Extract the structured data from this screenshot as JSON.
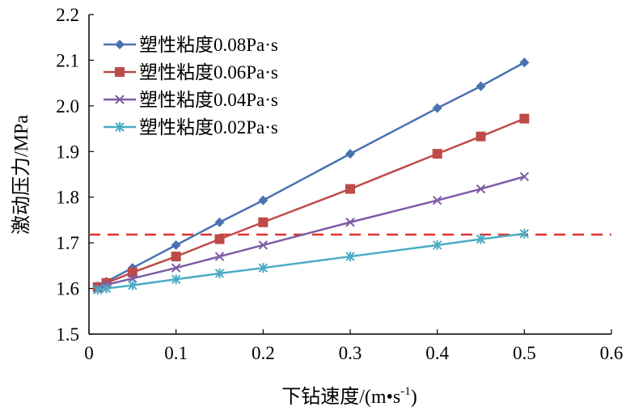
{
  "chart_data": {
    "type": "line",
    "xlabel": "下钻速度/(m•s",
    "xlabel_sup": "-1",
    "xlabel_close": ")",
    "ylabel": "激动压力/MPa",
    "xlim": [
      0,
      0.6
    ],
    "ylim": [
      1.5,
      2.2
    ],
    "x_ticks": [
      "0",
      "0.1",
      "0.2",
      "0.3",
      "0.4",
      "0.5",
      "0.6"
    ],
    "y_ticks": [
      "1.5",
      "1.6",
      "1.7",
      "1.8",
      "1.9",
      "2.0",
      "2.1",
      "2.2"
    ],
    "x": [
      0.01,
      0.02,
      0.05,
      0.1,
      0.15,
      0.2,
      0.3,
      0.4,
      0.45,
      0.5
    ],
    "grid": false,
    "legend_position": "top-left",
    "series": [
      {
        "name": "塑性粘度0.08Pa·s",
        "color": "#4a72b0",
        "marker": "diamond",
        "values": [
          1.605,
          1.615,
          1.645,
          1.695,
          1.745,
          1.793,
          1.895,
          1.995,
          2.043,
          2.095
        ]
      },
      {
        "name": "塑性粘度0.06Pa·s",
        "color": "#be4b48",
        "marker": "square",
        "values": [
          1.603,
          1.612,
          1.635,
          1.67,
          1.708,
          1.745,
          1.818,
          1.895,
          1.933,
          1.972
        ]
      },
      {
        "name": "塑性粘度0.04Pa·s",
        "color": "#7d5ba6",
        "marker": "x",
        "values": [
          1.6,
          1.608,
          1.622,
          1.645,
          1.67,
          1.695,
          1.745,
          1.793,
          1.818,
          1.845
        ]
      },
      {
        "name": "塑性粘度0.02Pa·s",
        "color": "#4aacc5",
        "marker": "star",
        "values": [
          1.597,
          1.6,
          1.607,
          1.62,
          1.633,
          1.645,
          1.67,
          1.695,
          1.708,
          1.72
        ]
      }
    ],
    "reference_line": {
      "y": 1.718,
      "color": "#e03030",
      "style": "dashed"
    }
  }
}
